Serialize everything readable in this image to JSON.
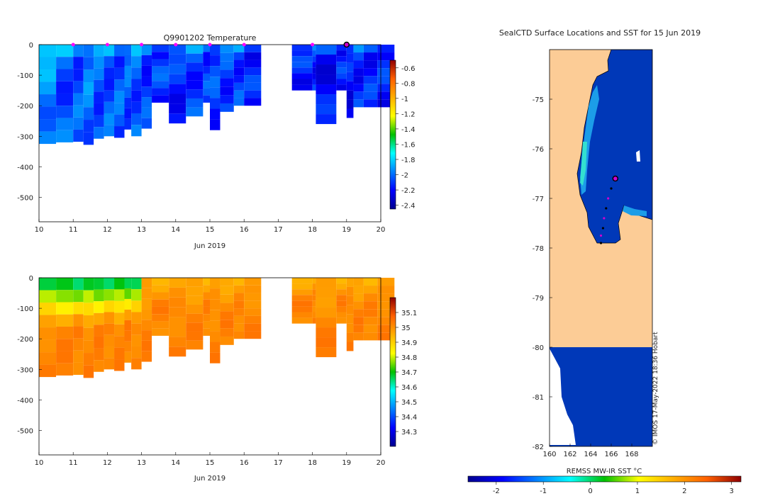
{
  "chart_data": [
    {
      "type": "heatmap",
      "title": "Q9901202  Temperature",
      "xlabel": "Jun 2019",
      "ylabel": "",
      "xlim": [
        10,
        20
      ],
      "ylim": [
        -580,
        0
      ],
      "xticks": [
        "10",
        "11",
        "12",
        "13",
        "14",
        "15",
        "16",
        "17",
        "18",
        "19",
        "20"
      ],
      "yticks": [
        "0",
        "-100",
        "-200",
        "-300",
        "-400",
        "-500"
      ],
      "colorbar": {
        "range": [
          -2.45,
          -0.5
        ],
        "ticks": [
          "-0.6",
          "-0.8",
          "-1",
          "-1.2",
          "-1.4",
          "-1.6",
          "-1.8",
          "-2",
          "-2.2",
          "-2.4"
        ]
      },
      "profile_markers_day": [
        11,
        12,
        13,
        14,
        15,
        16,
        18
      ],
      "current_marker_day": 19,
      "profiles": [
        {
          "x": 10.0,
          "depth": 325,
          "value": -1.95
        },
        {
          "x": 10.5,
          "depth": 320,
          "value": -2.05
        },
        {
          "x": 11.0,
          "depth": 318,
          "value": -2.05
        },
        {
          "x": 11.3,
          "depth": 328,
          "value": -2.0
        },
        {
          "x": 11.6,
          "depth": 308,
          "value": -2.05
        },
        {
          "x": 11.9,
          "depth": 300,
          "value": -2.05
        },
        {
          "x": 12.2,
          "depth": 305,
          "value": -2.05
        },
        {
          "x": 12.5,
          "depth": 278,
          "value": -2.05
        },
        {
          "x": 12.7,
          "depth": 300,
          "value": -2.05
        },
        {
          "x": 13.0,
          "depth": 275,
          "value": -2.1
        },
        {
          "x": 13.3,
          "depth": 190,
          "value": -2.1
        },
        {
          "x": 13.8,
          "depth": 258,
          "value": -2.15
        },
        {
          "x": 14.3,
          "depth": 235,
          "value": -2.1
        },
        {
          "x": 14.8,
          "depth": 190,
          "value": -2.1
        },
        {
          "x": 15.0,
          "depth": 280,
          "value": -2.1
        },
        {
          "x": 15.3,
          "depth": 220,
          "value": -2.1
        },
        {
          "x": 15.7,
          "depth": 200,
          "value": -2.1
        },
        {
          "x": 16.0,
          "depth": 200,
          "value": -2.15
        },
        {
          "x": 17.4,
          "depth": 150,
          "value": -2.15
        },
        {
          "x": 18.0,
          "depth": 150,
          "value": -2.15
        },
        {
          "x": 18.1,
          "depth": 260,
          "value": -2.2
        },
        {
          "x": 18.7,
          "depth": 150,
          "value": -2.15
        },
        {
          "x": 19.0,
          "depth": 240,
          "value": -2.2
        },
        {
          "x": 19.2,
          "depth": 205,
          "value": -2.15
        },
        {
          "x": 19.5,
          "depth": 205,
          "value": -2.15
        },
        {
          "x": 19.9,
          "depth": 205,
          "value": -2.15
        }
      ]
    },
    {
      "type": "heatmap",
      "title": "",
      "xlabel": "Jun 2019",
      "ylabel": "",
      "xlim": [
        10,
        20
      ],
      "ylim": [
        -580,
        0
      ],
      "xticks": [
        "10",
        "11",
        "12",
        "13",
        "14",
        "15",
        "16",
        "17",
        "18",
        "19",
        "20"
      ],
      "yticks": [
        "0",
        "-100",
        "-200",
        "-300",
        "-400",
        "-500"
      ],
      "colorbar": {
        "range": [
          34.2,
          35.2
        ],
        "ticks": [
          "35.1",
          "35",
          "34.9",
          "34.8",
          "34.7",
          "34.6",
          "34.5",
          "34.4",
          "34.3"
        ]
      },
      "profiles_use_depths_from_first_panel": true,
      "surface_value_first_days": 34.62,
      "surface_value_later_days": 34.95,
      "deep_value": 35.02
    },
    {
      "type": "heatmap",
      "title": "SealCTD Surface Locations and SST for 15 Jun 2019",
      "xlabel": "",
      "ylabel": "",
      "xlim": [
        160,
        170
      ],
      "ylim": [
        -82,
        -74
      ],
      "xticks": [
        "160",
        "162",
        "164",
        "166",
        "168"
      ],
      "yticks": [
        "-75",
        "-76",
        "-77",
        "-78",
        "-79",
        "-80",
        "-81",
        "-82"
      ],
      "colorbar": {
        "label": "REMSS MW-IR SST °C",
        "range": [
          -2.6,
          3.2
        ],
        "ticks": [
          "-2",
          "-1",
          "0",
          "1",
          "2",
          "3"
        ]
      },
      "track_lon": [
        166.3,
        166.0,
        165.7,
        165.5,
        165.3,
        165.2,
        165.0,
        165.0
      ],
      "track_lat": [
        -76.6,
        -76.8,
        -77.0,
        -77.2,
        -77.4,
        -77.6,
        -77.75,
        -77.9
      ],
      "current_location": [
        166.4,
        -76.6
      ],
      "credit": "© IMOS 17-May-2022 18:36 Hobart"
    }
  ]
}
